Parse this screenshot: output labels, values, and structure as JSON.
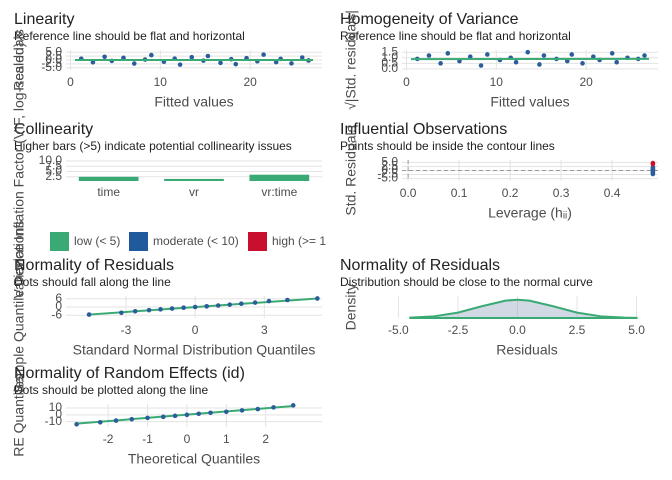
{
  "chart_data": [
    {
      "type": "scatter",
      "title": "Linearity",
      "subtitle": "Reference line should be flat and horizontal",
      "xlabel": "Fitted values",
      "ylabel": "Residuals",
      "xlim": [
        -0.5,
        28
      ],
      "ylim": [
        -6.5,
        6.5
      ],
      "xticks": [
        0,
        10,
        20
      ],
      "yticks": [
        {
          "value": -5,
          "label": "-5.0"
        },
        -2.5,
        {
          "value": 0,
          "label": "0.0"
        },
        2.5,
        {
          "value": 5,
          "label": "5.0"
        }
      ],
      "grid": true,
      "series": [
        {
          "mode": "points",
          "color": "#2b5d9b",
          "x": [
            1.2,
            2.5,
            3.8,
            4.6,
            5.9,
            7.1,
            8.3,
            9.0,
            10.4,
            11.6,
            12.2,
            13.5,
            14.8,
            15.3,
            16.7,
            17.9,
            18.4,
            19.6,
            20.8,
            21.5,
            22.9,
            23.4,
            24.6,
            25.8,
            26.5
          ],
          "values": [
            0.8,
            -1.5,
            2.1,
            -0.6,
            1.4,
            -2.3,
            0.3,
            3.2,
            -1.1,
            0.9,
            -3.0,
            1.8,
            -0.4,
            2.6,
            -1.9,
            0.5,
            -2.7,
            1.2,
            -0.8,
            3.5,
            -1.4,
            0.7,
            -2.2,
            1.6,
            -0.3
          ]
        },
        {
          "mode": "line",
          "color": "#3aaa74",
          "x": [
            0.5,
            27
          ],
          "values": [
            0,
            0
          ]
        }
      ]
    },
    {
      "type": "scatter",
      "title": "Homogeneity of Variance",
      "subtitle": "Reference line should be flat and horizontal",
      "xlabel": "Fitted values",
      "ylabel": "√|Std. residuals|",
      "xlim": [
        -0.5,
        28
      ],
      "ylim": [
        -0.1,
        1.7
      ],
      "xticks": [
        0,
        10,
        20
      ],
      "yticks": [
        {
          "value": 0,
          "label": "0.0"
        },
        0.5,
        {
          "value": 1,
          "label": "1.0"
        },
        1.5
      ],
      "grid": true,
      "series": [
        {
          "mode": "points",
          "color": "#2b5d9b",
          "x": [
            1.2,
            2.5,
            3.8,
            4.6,
            5.9,
            7.1,
            8.3,
            9.0,
            10.4,
            11.6,
            12.2,
            13.5,
            14.8,
            15.3,
            16.7,
            17.9,
            18.4,
            19.6,
            20.8,
            21.5,
            22.9,
            23.4,
            24.6,
            25.8,
            26.5
          ],
          "values": [
            0.9,
            1.2,
            0.5,
            1.4,
            0.7,
            1.1,
            0.3,
            1.3,
            0.8,
            1.0,
            0.6,
            1.5,
            0.4,
            1.2,
            0.9,
            0.7,
            1.3,
            0.5,
            1.1,
            0.8,
            1.4,
            0.6,
            1.0,
            0.9,
            1.2
          ]
        },
        {
          "mode": "line",
          "color": "#3aaa74",
          "x": [
            0.5,
            27
          ],
          "values": [
            0.88,
            0.9
          ]
        }
      ]
    },
    {
      "type": "bar",
      "title": "Collinearity",
      "subtitle": "Higher bars (>5) indicate potential collinearity issues",
      "ylabel": "Variance Inflation Factor (VIF, log-scaled)",
      "categories": [
        "time",
        "vr",
        "vr:time"
      ],
      "values": [
        2.5,
        1.5,
        3.5
      ],
      "color": "#3aaa74",
      "ylim": [
        0.5,
        10.5
      ],
      "yticks": [
        2.5,
        {
          "value": 5,
          "label": "5.0"
        },
        7.5,
        {
          "value": 10,
          "label": "10.0"
        }
      ],
      "grid": true,
      "legend": [
        {
          "name": "low (< 5)",
          "color": "#3aaa74"
        },
        {
          "name": "moderate (< 10)",
          "color": "#1f5a9c"
        },
        {
          "name": "high (>= 1",
          "color": "#c8102e"
        }
      ]
    },
    {
      "type": "scatter",
      "title": "Influential Observations",
      "subtitle": "Points should be inside the contour lines",
      "xlabel": "Leverage (hᵢᵢ)",
      "ylabel": "Std. Residuals",
      "xlim": [
        -0.012,
        0.49
      ],
      "ylim": [
        -6.5,
        6.5
      ],
      "xticks": [
        {
          "value": 0,
          "label": "0.0"
        },
        0.1,
        0.2,
        0.3,
        0.4
      ],
      "yticks": [
        {
          "value": -5,
          "label": "-5.0"
        },
        -2.5,
        {
          "value": 0,
          "label": "0.0"
        },
        2.5,
        {
          "value": 5,
          "label": "5.0"
        }
      ],
      "grid": true,
      "hline": 0,
      "vline": 0,
      "series": [
        {
          "mode": "points",
          "color": "#2b5d9b",
          "x": [
            0.48,
            0.48,
            0.48,
            0.48,
            0.48,
            0.48,
            0.48,
            0.48
          ],
          "values": [
            -1.5,
            0.5,
            2,
            -0.3,
            1.2,
            -2.2,
            0.8,
            -0.9
          ]
        },
        {
          "mode": "points",
          "color": "#c8102e",
          "x": [
            0.48,
            0.48
          ],
          "values": [
            4.6,
            4.0
          ]
        }
      ]
    },
    {
      "type": "scatter",
      "title": "Normality of Residuals",
      "subtitle": "Dots should fall along the line",
      "xlabel": "Standard Normal Distribution Quantiles",
      "ylabel": "Sample Quantile Deviations",
      "xlim": [
        -5.6,
        5.5
      ],
      "ylim": [
        -8,
        8
      ],
      "xticks": [
        -3,
        0,
        3
      ],
      "yticks": [
        -6,
        0,
        6
      ],
      "grid": true,
      "series": [
        {
          "mode": "line",
          "color": "#3aaa74",
          "x": [
            -4.6,
            5.3
          ],
          "values": [
            -5.5,
            6.2
          ]
        },
        {
          "mode": "points",
          "color": "#2b5d9b",
          "x": [
            -4.6,
            -3.2,
            -2.6,
            -2.0,
            -1.5,
            -1.0,
            -0.5,
            0,
            0.5,
            1.0,
            1.5,
            2.0,
            2.6,
            3.2,
            4.0,
            5.3
          ],
          "values": [
            -5.5,
            -4.2,
            -3.1,
            -2.3,
            -1.7,
            -1.1,
            -0.5,
            0,
            0.5,
            1.1,
            1.7,
            2.4,
            3.2,
            4.3,
            5.1,
            6.2
          ]
        }
      ]
    },
    {
      "type": "density",
      "title": "Normality of Residuals",
      "subtitle": "Distribution should be close to the normal curve",
      "xlabel": "Residuals",
      "ylabel": "Density",
      "xlim": [
        -5.1,
        5.9
      ],
      "ylim": [
        0,
        0.3
      ],
      "xticks": [
        {
          "value": -5,
          "label": "-5.0"
        },
        -2.5,
        {
          "value": 0,
          "label": "0.0"
        },
        2.5,
        {
          "value": 5,
          "label": "5.0"
        }
      ],
      "grid": true,
      "series": [
        {
          "mode": "area",
          "color": "#3aaa74",
          "x": [
            -4.5,
            -3.5,
            -2.5,
            -1.5,
            -0.5,
            0,
            0.5,
            1.5,
            2.5,
            3.5,
            4.5,
            5.0
          ],
          "values": [
            0.005,
            0.023,
            0.073,
            0.16,
            0.237,
            0.249,
            0.237,
            0.16,
            0.073,
            0.023,
            0.005,
            0.002
          ]
        }
      ]
    },
    {
      "type": "scatter",
      "title": "Normality of Random Effects (id)",
      "subtitle": "Dots should be plotted along the line",
      "xlabel": "Theoretical Quantiles",
      "ylabel": "RE Quantiles",
      "xlim": [
        -3.07,
        3.43
      ],
      "ylim": [
        -18,
        16
      ],
      "xticks": [
        -2,
        -1,
        0,
        1,
        2
      ],
      "yticks": [
        -10,
        0,
        10
      ],
      "grid": true,
      "series": [
        {
          "mode": "line",
          "color": "#3aaa74",
          "x": [
            -2.8,
            2.7
          ],
          "values": [
            -13,
            13
          ]
        },
        {
          "mode": "points",
          "color": "#2b5d9b",
          "x": [
            -2.8,
            -2.2,
            -1.8,
            -1.4,
            -1.0,
            -0.6,
            -0.3,
            0,
            0.3,
            0.6,
            1.0,
            1.4,
            1.8,
            2.2,
            2.7
          ],
          "values": [
            -14,
            -11,
            -8.5,
            -6.5,
            -4.5,
            -3,
            -1.5,
            0,
            1.5,
            3,
            4.5,
            6.5,
            8.5,
            11,
            14
          ]
        }
      ]
    }
  ]
}
